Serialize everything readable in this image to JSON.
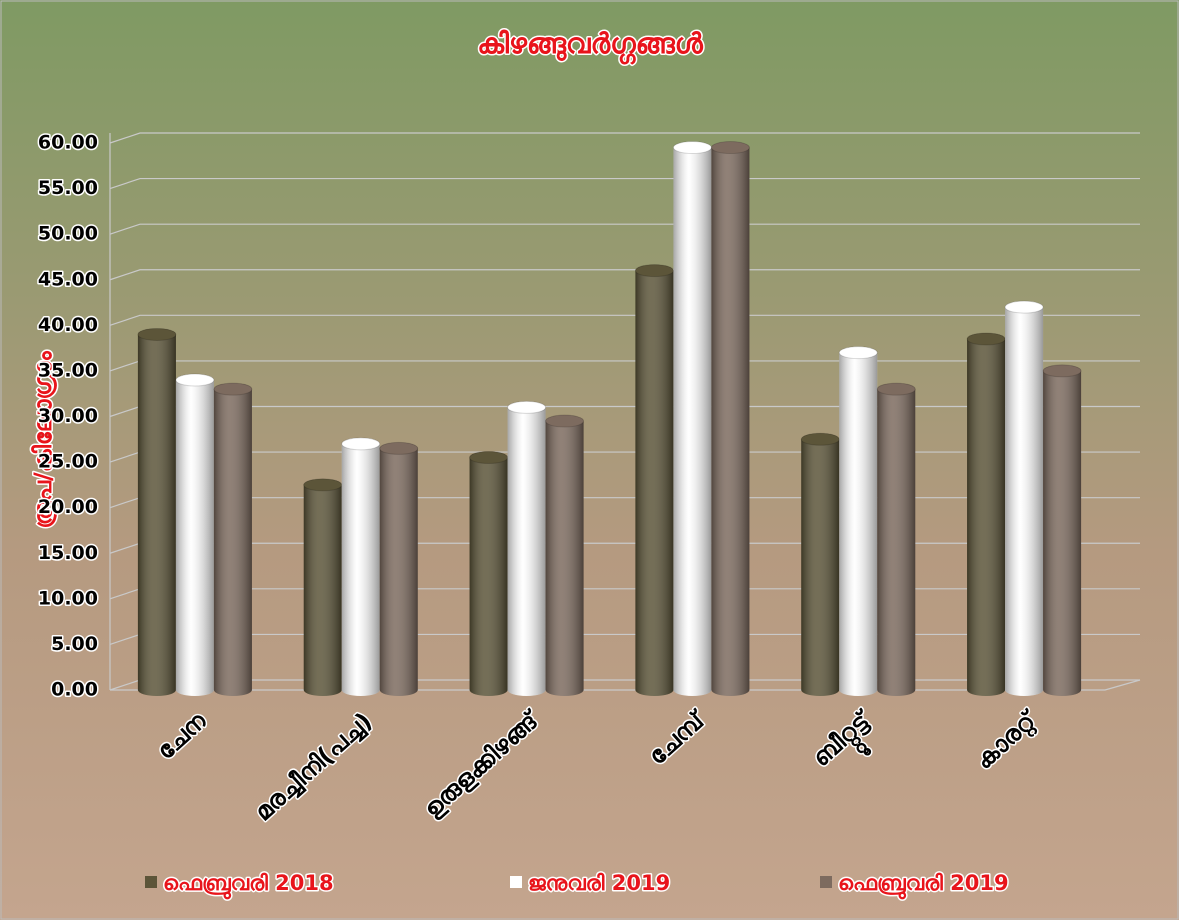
{
  "chart_data": {
    "type": "bar",
    "title": "കിഴങ്ങുവർഗ്ഗങ്ങൾ",
    "y_label": "രൂപ/കിലോഗ്രാം",
    "categories": [
      "ചേന",
      "മരച്ചീനി(പച്ച)",
      "ഉരുളക്കിഴങ്ങ്",
      "ചേമ്പ്",
      "ബീറ്റ്റൂട്ട്",
      "കാരറ്റ്"
    ],
    "series": [
      {
        "name": "ഫെബ്രുവരി  2018",
        "color": "#5c5539",
        "values": [
          39,
          22.5,
          25.5,
          46,
          27.5,
          38.5
        ]
      },
      {
        "name": "ജനുവരി 2019",
        "color": "#ffffff",
        "values": [
          34,
          27,
          31,
          59.5,
          37,
          42
        ]
      },
      {
        "name": "ഫെബ്രുവരി  2019",
        "color": "#7d6b5f",
        "values": [
          33,
          26.5,
          29.5,
          59.5,
          33,
          35
        ]
      }
    ],
    "ylim": [
      0,
      60
    ],
    "yticks": [
      {
        "value": 0,
        "label": "0.00"
      },
      {
        "value": 5,
        "label": "5.00"
      },
      {
        "value": 10,
        "label": "10.00"
      },
      {
        "value": 15,
        "label": "15.00"
      },
      {
        "value": 20,
        "label": "20.00"
      },
      {
        "value": 25,
        "label": "25.00"
      },
      {
        "value": 30,
        "label": "30.00"
      },
      {
        "value": 35,
        "label": "35.00"
      },
      {
        "value": 40,
        "label": "40.00"
      },
      {
        "value": 45,
        "label": "45.00"
      },
      {
        "value": 50,
        "label": "50.00"
      },
      {
        "value": 55,
        "label": "55.00"
      },
      {
        "value": 60,
        "label": "60.00"
      }
    ],
    "grid": true
  }
}
